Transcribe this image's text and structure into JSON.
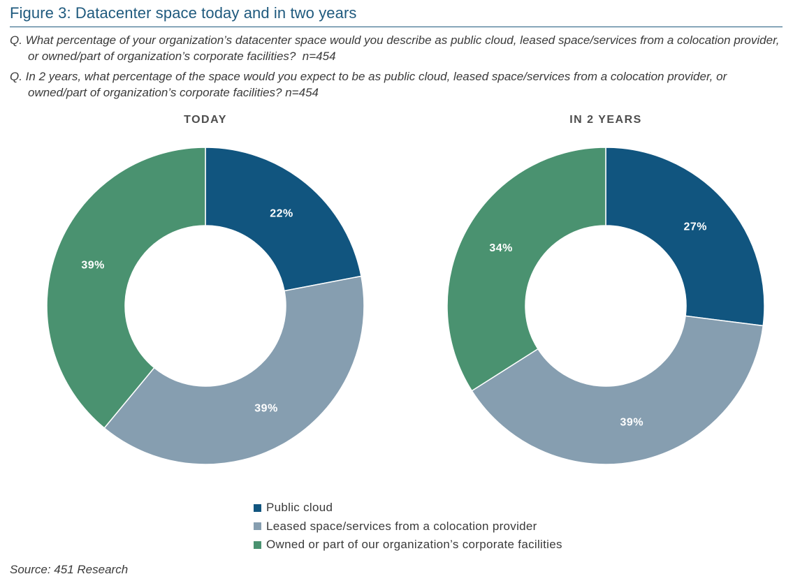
{
  "figure": {
    "title": "Figure 3: Datacenter space today and in two years",
    "question_1": "Q. What percentage of your organization’s datacenter space would you describe as public cloud, leased space/services from a colocation provider, or owned/part of organization’s corporate facilities?  n=454",
    "question_2": "Q. In 2 years, what percentage of the space would you expect to be as public cloud, leased space/services from a colocation provider, or owned/part of organization’s corporate facilities? n=454",
    "source": "Source: 451 Research"
  },
  "chart_data": [
    {
      "type": "pie",
      "title": "TODAY",
      "categories": [
        "Public cloud",
        "Leased space/services from a colocation provider",
        "Owned or part of our organization’s corporate facilities"
      ],
      "values": [
        22,
        39,
        39
      ],
      "labels": [
        "22%",
        "39%",
        "39%"
      ],
      "colors": [
        "#11557f",
        "#869eb0",
        "#4a9270"
      ],
      "donut": true
    },
    {
      "type": "pie",
      "title": "IN 2 YEARS",
      "categories": [
        "Public cloud",
        "Leased space/services from a colocation provider",
        "Owned or part of our organization’s corporate facilities"
      ],
      "values": [
        27,
        39,
        34
      ],
      "labels": [
        "27%",
        "39%",
        "34%"
      ],
      "colors": [
        "#11557f",
        "#869eb0",
        "#4a9270"
      ],
      "donut": true
    }
  ],
  "legend": {
    "items": [
      {
        "label": "Public cloud",
        "color": "#11557f"
      },
      {
        "label": "Leased space/services from a colocation provider",
        "color": "#869eb0"
      },
      {
        "label": "Owned or part of our organization’s corporate facilities",
        "color": "#4a9270"
      }
    ]
  }
}
